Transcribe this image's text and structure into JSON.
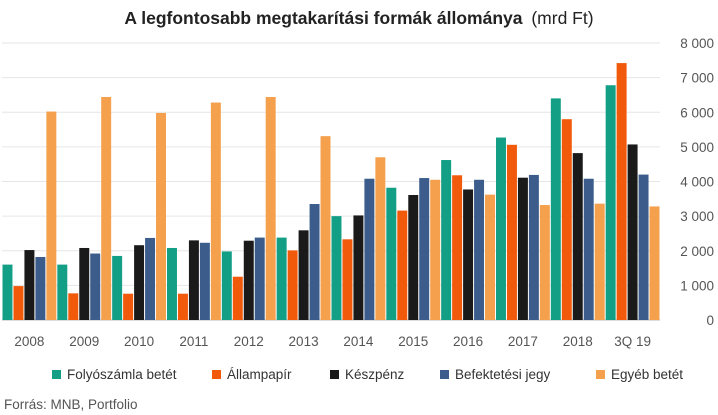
{
  "chart_data": {
    "type": "bar",
    "title": "A legfontosabb megtakarítási formák állománya",
    "title_unit": "(mrd Ft)",
    "categories": [
      "2008",
      "2009",
      "2010",
      "2011",
      "2012",
      "2013",
      "2014",
      "2015",
      "2016",
      "2017",
      "2018",
      "3Q 19"
    ],
    "ylim": [
      0,
      8000
    ],
    "yticks": [
      "0",
      "1 000",
      "2 000",
      "3 000",
      "4 000",
      "5 000",
      "6 000",
      "7 000",
      "8 000"
    ],
    "y_axis_position": "right",
    "grid": true,
    "legend_position": "bottom",
    "series": [
      {
        "name": "Folyószámla betét",
        "color": "#129f86",
        "values": [
          1600,
          1600,
          1850,
          2080,
          1980,
          2380,
          3000,
          3820,
          4620,
          5270,
          6400,
          6780
        ]
      },
      {
        "name": "Állampapír",
        "color": "#f25a0b",
        "values": [
          980,
          770,
          760,
          760,
          1250,
          2010,
          2330,
          3160,
          4180,
          5060,
          5800,
          7420
        ]
      },
      {
        "name": "Készpénz",
        "color": "#1a1a1a",
        "values": [
          2020,
          2080,
          2160,
          2300,
          2290,
          2590,
          3020,
          3610,
          3770,
          4110,
          4820,
          5070
        ]
      },
      {
        "name": "Befektetési jegy",
        "color": "#3c5d8c",
        "values": [
          1820,
          1920,
          2370,
          2230,
          2380,
          3350,
          4080,
          4100,
          4050,
          4190,
          4080,
          4200
        ]
      },
      {
        "name": "Egyéb betét",
        "color": "#f5a04c",
        "values": [
          6020,
          6440,
          5980,
          6280,
          6440,
          5310,
          4700,
          4050,
          3620,
          3320,
          3360,
          3280
        ]
      }
    ],
    "source": "Forrás: MNB, Portfolio"
  }
}
